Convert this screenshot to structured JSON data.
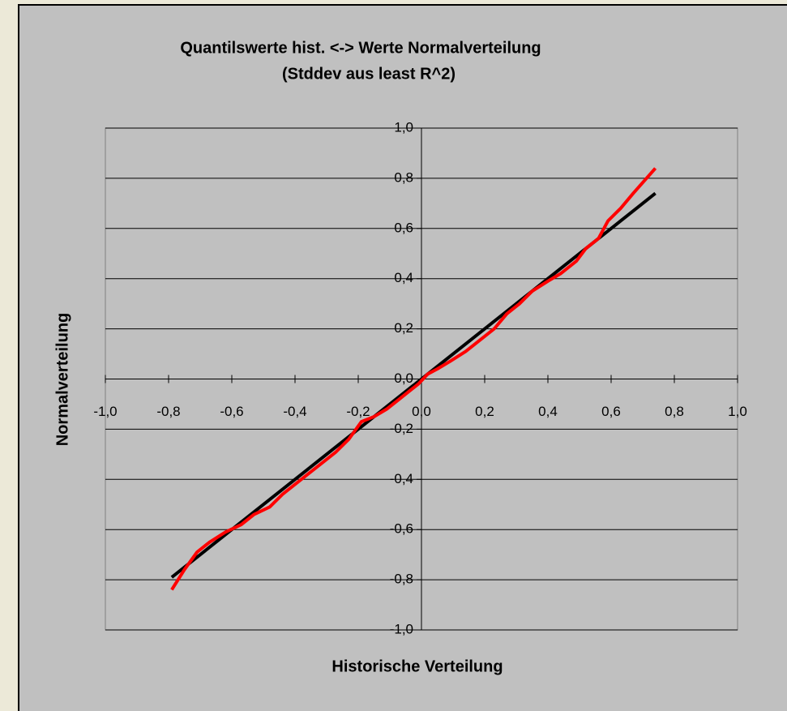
{
  "chart_data": {
    "type": "line",
    "title": [
      "Quantilswerte hist. <-> Werte Normalverteilung",
      "(Stddev aus least R^2)"
    ],
    "x_label": "Historische Verteilung",
    "y_label": "Normalverteilung",
    "xlim": [
      -1,
      1
    ],
    "ylim": [
      -1,
      1
    ],
    "xticks": [
      {
        "value": -1,
        "label": "-1,0"
      },
      {
        "value": -0.8,
        "label": "-0,8"
      },
      {
        "value": -0.6,
        "label": "-0,6"
      },
      {
        "value": -0.4,
        "label": "-0,4"
      },
      {
        "value": -0.2,
        "label": "-0,2"
      },
      {
        "value": 0,
        "label": "0,0"
      },
      {
        "value": 0.2,
        "label": "0,2"
      },
      {
        "value": 0.4,
        "label": "0,4"
      },
      {
        "value": 0.6,
        "label": "0,6"
      },
      {
        "value": 0.8,
        "label": "0,8"
      },
      {
        "value": 1,
        "label": "1,0"
      }
    ],
    "yticks": [
      {
        "value": 1,
        "label": "1,0"
      },
      {
        "value": 0.8,
        "label": "0,8"
      },
      {
        "value": 0.6,
        "label": "0,6"
      },
      {
        "value": 0.4,
        "label": "0,4"
      },
      {
        "value": 0.2,
        "label": "0,2"
      },
      {
        "value": 0,
        "label": "0,0"
      },
      {
        "value": -0.2,
        "label": "-0,2"
      },
      {
        "value": -0.4,
        "label": "-0,4"
      },
      {
        "value": -0.6,
        "label": "-0,6"
      },
      {
        "value": -0.8,
        "label": "-0,8"
      },
      {
        "value": -1,
        "label": "-1,0"
      }
    ],
    "grid": true,
    "series": [
      {
        "color": "#000000",
        "x": [
          -0.79,
          0.74
        ],
        "values": [
          -0.79,
          0.74
        ]
      },
      {
        "color": "#ff0000",
        "x": [
          -0.79,
          -0.75,
          -0.71,
          -0.67,
          -0.62,
          -0.57,
          -0.53,
          -0.48,
          -0.44,
          -0.4,
          -0.36,
          -0.31,
          -0.27,
          -0.23,
          -0.19,
          -0.15,
          -0.11,
          -0.07,
          -0.04,
          -0.01,
          0.02,
          0.05,
          0.09,
          0.14,
          0.18,
          0.23,
          0.27,
          0.31,
          0.35,
          0.4,
          0.44,
          0.49,
          0.52,
          0.56,
          0.59,
          0.63,
          0.67,
          0.74
        ],
        "values": [
          -0.84,
          -0.76,
          -0.69,
          -0.65,
          -0.61,
          -0.58,
          -0.54,
          -0.51,
          -0.46,
          -0.42,
          -0.38,
          -0.33,
          -0.29,
          -0.24,
          -0.17,
          -0.15,
          -0.12,
          -0.08,
          -0.05,
          -0.02,
          0.02,
          0.04,
          0.07,
          0.11,
          0.15,
          0.2,
          0.26,
          0.3,
          0.35,
          0.39,
          0.42,
          0.47,
          0.52,
          0.56,
          0.63,
          0.68,
          0.74,
          0.84
        ]
      }
    ]
  }
}
